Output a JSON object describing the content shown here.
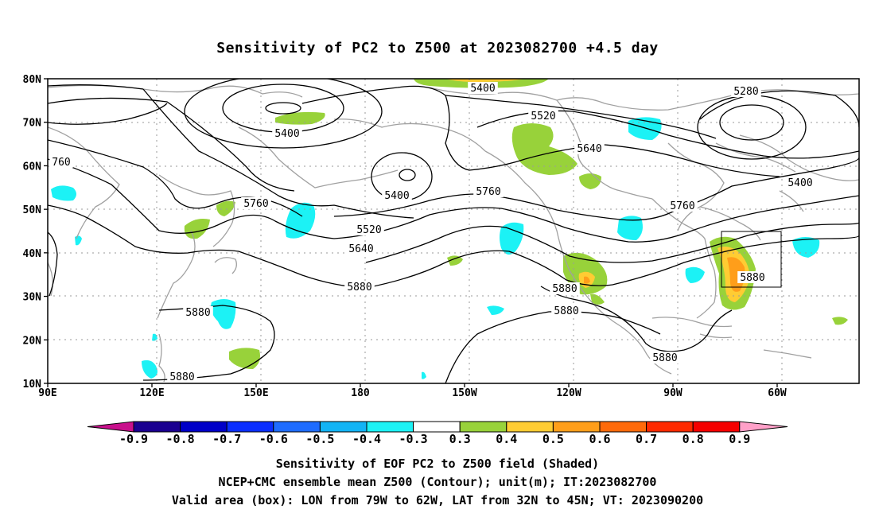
{
  "title": "Sensitivity of PC2 to Z500 at 2023082700 +4.5 day",
  "lat_ticks": [
    "80N",
    "70N",
    "60N",
    "50N",
    "40N",
    "30N",
    "20N",
    "10N"
  ],
  "lon_ticks": [
    "90E",
    "120E",
    "150E",
    "180",
    "150W",
    "120W",
    "90W",
    "60W"
  ],
  "contour_labels": [
    {
      "text": "5400"
    },
    {
      "text": "5280"
    },
    {
      "text": "5520"
    },
    {
      "text": "5640"
    },
    {
      "text": "5400"
    },
    {
      "text": "760"
    },
    {
      "text": "5400"
    },
    {
      "text": "5760"
    },
    {
      "text": "5400"
    },
    {
      "text": "5760"
    },
    {
      "text": "5760"
    },
    {
      "text": "5520"
    },
    {
      "text": "5640"
    },
    {
      "text": "5880"
    },
    {
      "text": "5880"
    },
    {
      "text": "5880"
    },
    {
      "text": "5880"
    },
    {
      "text": "5880"
    },
    {
      "text": "5880"
    },
    {
      "text": "5880"
    }
  ],
  "colorbar": {
    "labels": [
      "-0.9",
      "-0.8",
      "-0.7",
      "-0.6",
      "-0.5",
      "-0.4",
      "-0.3",
      "0.3",
      "0.4",
      "0.5",
      "0.6",
      "0.7",
      "0.8",
      "0.9"
    ],
    "colors": [
      "#1a0090",
      "#0000c8",
      "#0a2eff",
      "#1e6cff",
      "#12b4f5",
      "#1cf2f5",
      "#ffffff",
      "#98d23a",
      "#ffcc33",
      "#ff9e1a",
      "#ff6a0a",
      "#ff2a00",
      "#f50000"
    ],
    "left_arrow_color": "#c8108c",
    "right_arrow_color": "#ffa0c8"
  },
  "footer": {
    "line1": "Sensitivity of EOF PC2 to Z500 field (Shaded)",
    "line2": "NCEP+CMC ensemble mean Z500 (Contour); unit(m); IT:2023082700",
    "line3": "Valid area (box): LON from 79W to 62W, LAT from 32N to 45N; VT: 2023090200"
  }
}
